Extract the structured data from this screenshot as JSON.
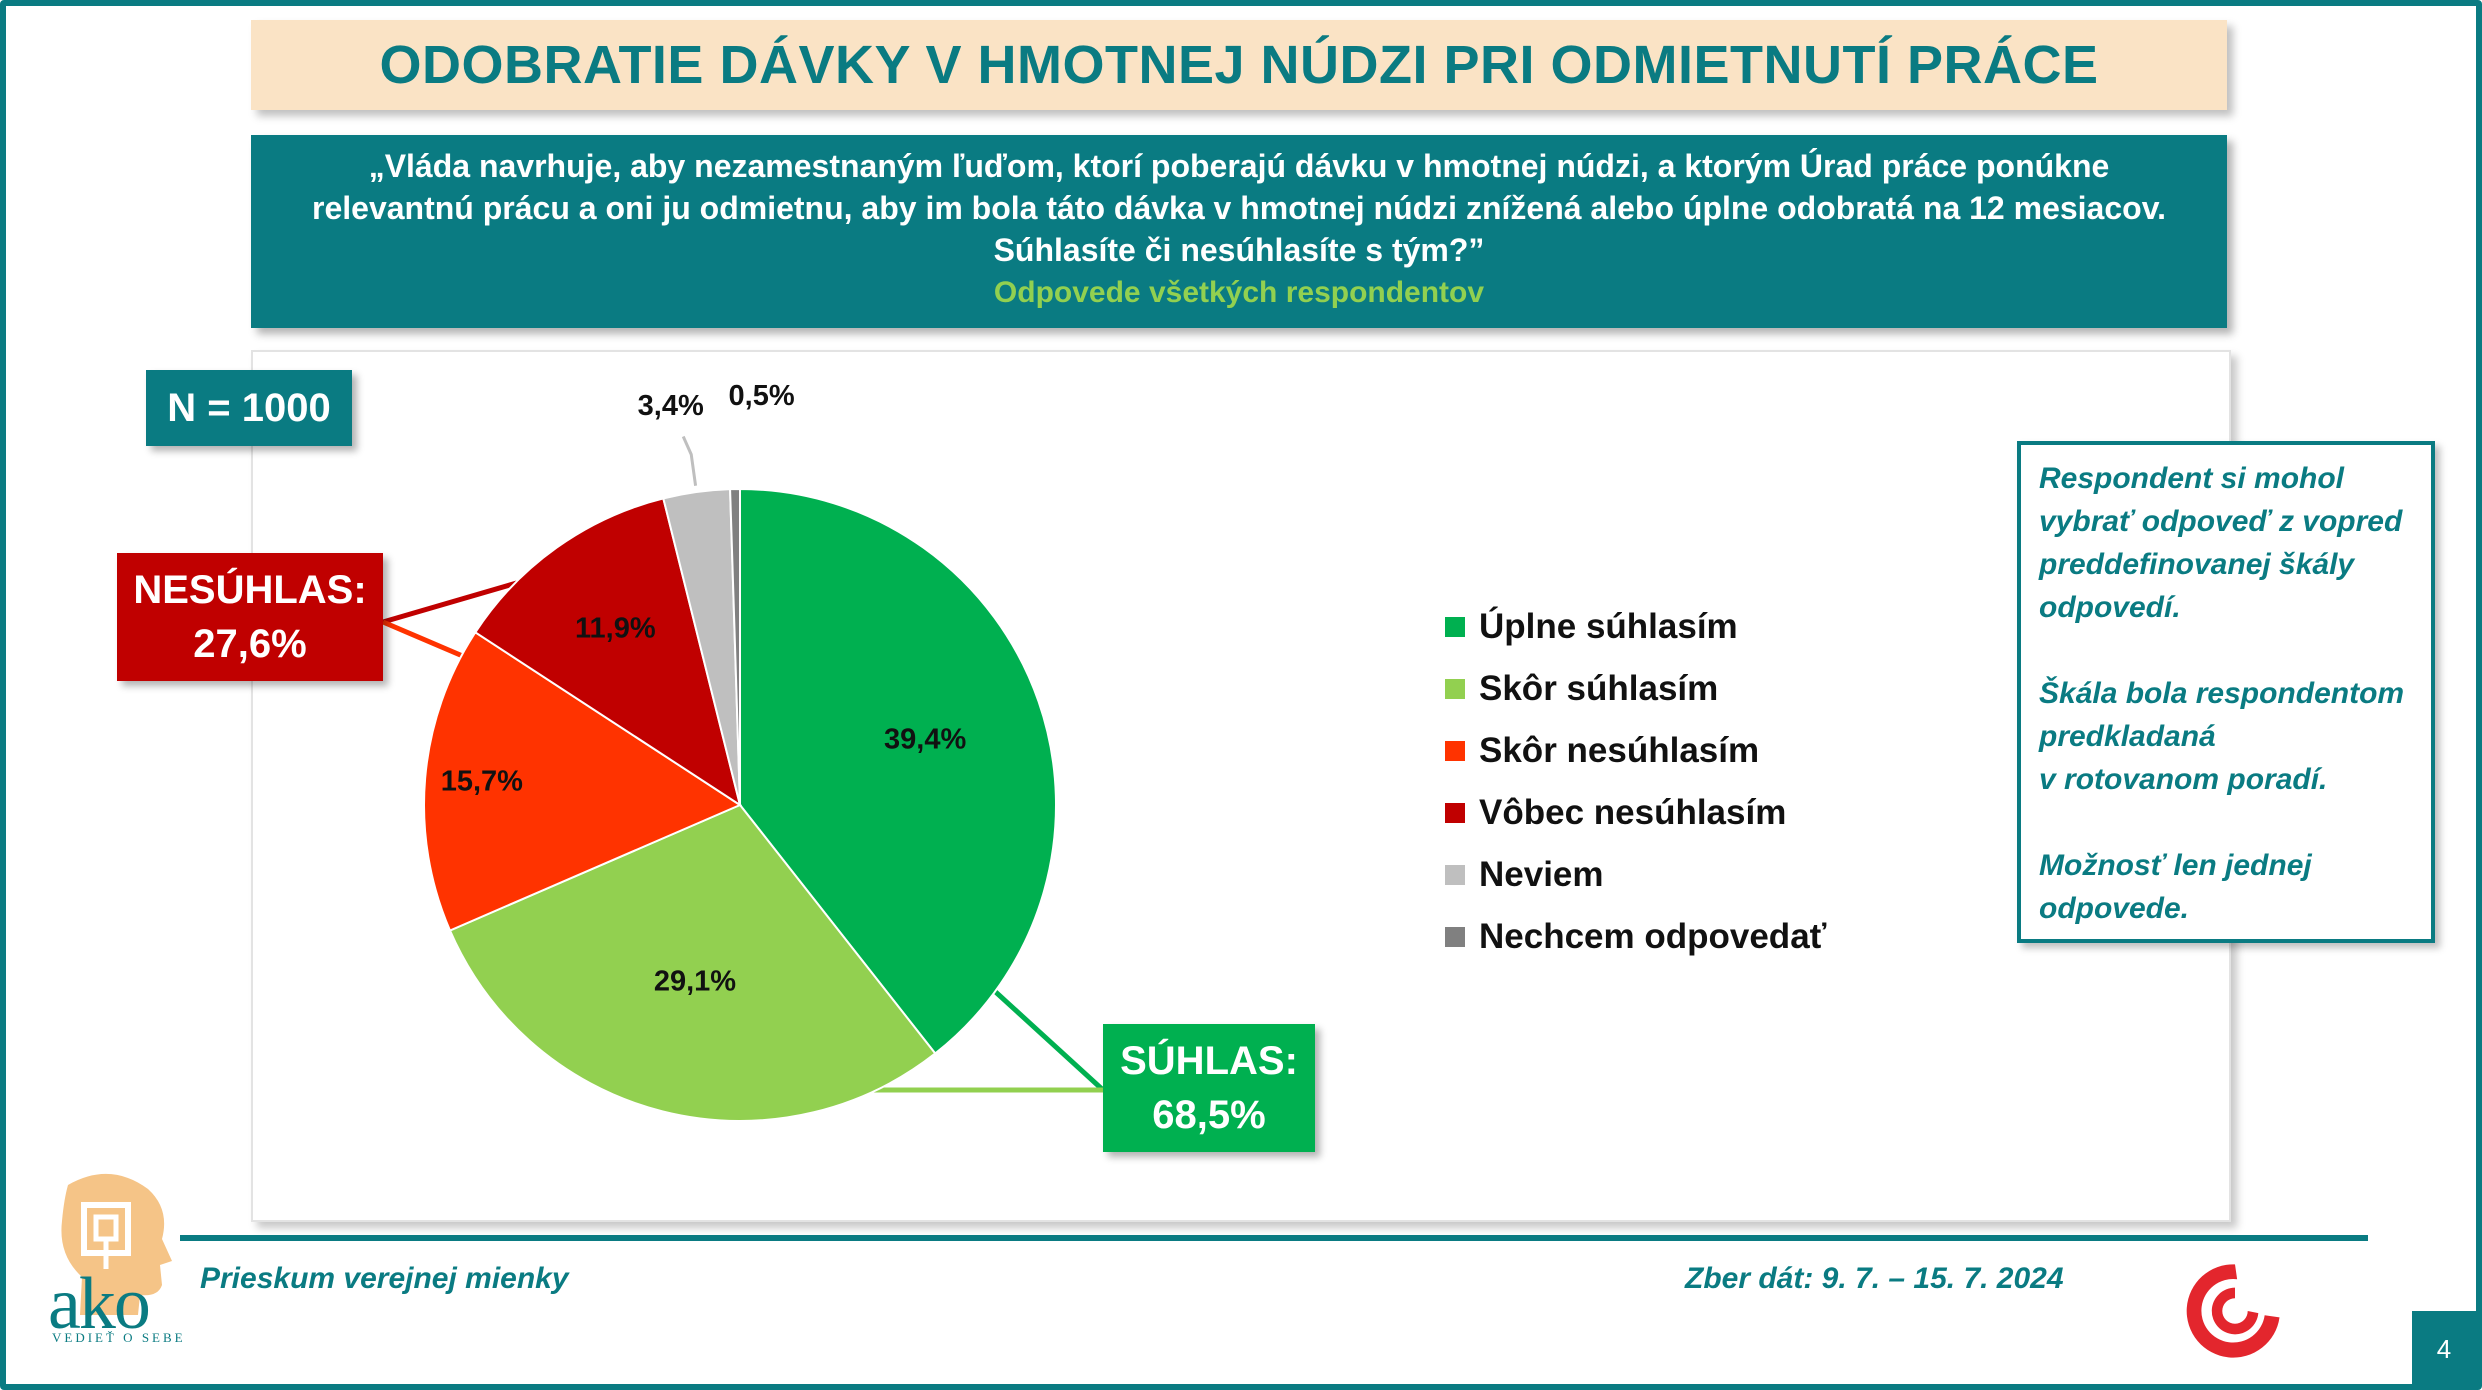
{
  "title": "ODOBRATIE DÁVKY V HMOTNEJ NÚDZI PRI ODMIETNUTÍ PRÁCE",
  "question": {
    "text": "„Vláda navrhuje, aby nezamestnaným ľuďom, ktorí poberajú dávku v hmotnej núdzi, a ktorým Úrad práce ponúkne relevantnú prácu a oni ju odmietnu, aby im bola táto dávka v hmotnej núdzi znížená alebo úplne odobratá na 12 mesiacov. Súhlasíte či nesúhlasíte s tým?”",
    "subtitle": "Odpovede všetkých respondentov"
  },
  "sample": "N = 1000",
  "callouts": {
    "disagree_label": "NESÚHLAS:",
    "disagree_value": "27,6%",
    "agree_label": "SÚHLAS:",
    "agree_value": "68,5%"
  },
  "note": {
    "p1": "Respondent si mohol\nvybrať odpoveď z vopred\npreddefinovanej škály\nodpovedí.",
    "p2": "Škála bola respondentom\npredkladaná\nv rotovanom poradí.",
    "p3": "Možnosť len jednej\nodpovede."
  },
  "footer": {
    "left": "Prieskum verejnej mienky",
    "right": "Zber dát: 9. 7. – 15. 7. 2024",
    "page": "4",
    "logo_text": "ako",
    "logo_tagline": "VEDIEŤ O SEBE"
  },
  "chart_data": {
    "type": "pie",
    "title": "",
    "series": [
      {
        "name": "Úplne súhlasím",
        "value": 39.4,
        "label": "39,4%",
        "color": "#00b050"
      },
      {
        "name": "Skôr súhlasím",
        "value": 29.1,
        "label": "29,1%",
        "color": "#92d050"
      },
      {
        "name": "Skôr nesúhlasím",
        "value": 15.7,
        "label": "15,7%",
        "color": "#ff3300"
      },
      {
        "name": "Vôbec nesúhlasím",
        "value": 11.9,
        "label": "11,9%",
        "color": "#c00000"
      },
      {
        "name": "Neviem",
        "value": 3.4,
        "label": "3,4%",
        "color": "#bfbfbf"
      },
      {
        "name": "Nechcem odpovedať",
        "value": 0.5,
        "label": "0,5%",
        "color": "#808080"
      }
    ],
    "legend_position": "right"
  }
}
